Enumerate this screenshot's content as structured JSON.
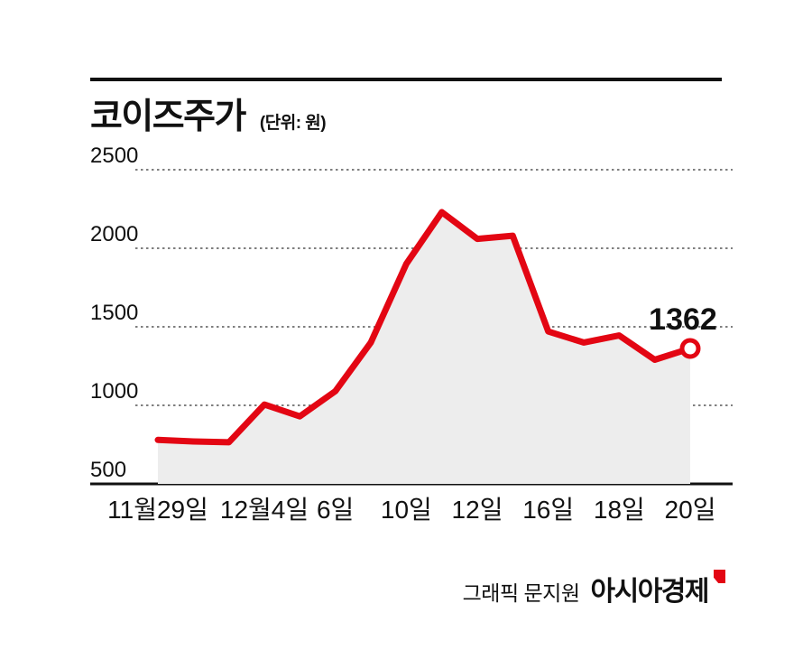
{
  "header": {
    "title": "코이즈주가",
    "unit": "(단위: 원)"
  },
  "footer": {
    "credit_prefix": "그래픽 문지원",
    "brand": "아시아경제"
  },
  "colors": {
    "line": "#e30613",
    "area_fill": "#ededed",
    "text": "#111111",
    "grid": "#555555",
    "baseline": "#111111"
  },
  "chart_data": {
    "type": "area",
    "title": "코이즈주가",
    "ylabel": "원",
    "ylim": [
      500,
      2500
    ],
    "yticks": [
      500,
      1000,
      1500,
      2000,
      2500
    ],
    "grid": true,
    "legend": false,
    "x_tick_labels": [
      "11월29일",
      "12월4일",
      "6일",
      "10일",
      "12일",
      "16일",
      "18일",
      "20일"
    ],
    "x_tick_indices": [
      0,
      3,
      5,
      7,
      9,
      11,
      13,
      15
    ],
    "values": [
      780,
      770,
      765,
      1005,
      930,
      1090,
      1400,
      1900,
      2230,
      2060,
      2080,
      1470,
      1400,
      1445,
      1290,
      1362
    ],
    "last_value_label": "1362"
  }
}
